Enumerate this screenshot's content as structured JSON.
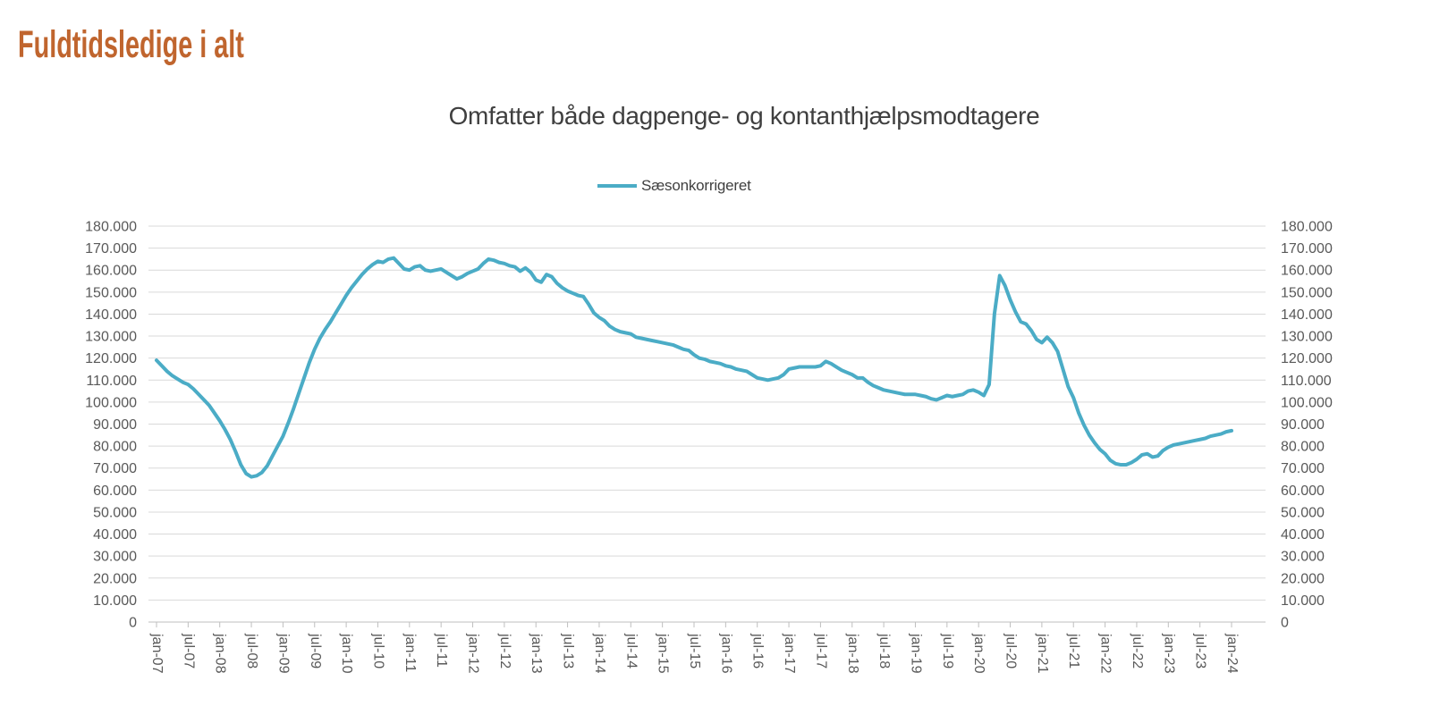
{
  "header": {
    "title": "Fuldtidsledige i alt",
    "title_color": "#C0652E"
  },
  "chart": {
    "subtitle": "Omfatter både dagpenge- og kontanthjælpsmodtagere",
    "legend": "Sæsonkorrigeret",
    "line_color": "#4BACC6",
    "gridline_color": "#D9D9D9",
    "axis_color": "#BFBFBF",
    "label_color": "#595959",
    "y_axis_labels": [
      "0",
      "10.000",
      "20.000",
      "30.000",
      "40.000",
      "50.000",
      "60.000",
      "70.000",
      "80.000",
      "90.000",
      "100.000",
      "110.000",
      "120.000",
      "130.000",
      "140.000",
      "150.000",
      "160.000",
      "170.000",
      "180.000"
    ]
  },
  "chart_data": {
    "type": "line",
    "title": "Omfatter både dagpenge- og kontanthjælpsmodtagere",
    "xlabel": "",
    "ylabel": "",
    "ylim": [
      0,
      180000
    ],
    "y_tick_step": 10000,
    "grid": "horizontal",
    "legend_position": "top-center",
    "axes": {
      "y_left": true,
      "y_right": true
    },
    "x_tick_labels": [
      "jan-07",
      "jul-07",
      "jan-08",
      "jul-08",
      "jan-09",
      "jul-09",
      "jan-10",
      "jul-10",
      "jan-11",
      "jul-11",
      "jan-12",
      "jul-12",
      "jan-13",
      "jul-13",
      "jan-14",
      "jul-14",
      "jan-15",
      "jul-15",
      "jan-16",
      "jul-16",
      "jan-17",
      "jul-17",
      "jan-18",
      "jul-18",
      "jan-19",
      "jul-19",
      "jan-20",
      "jul-20",
      "jan-21",
      "jul-21",
      "jan-22",
      "jul-22",
      "jan-23",
      "jul-23",
      "jan-24"
    ],
    "series": [
      {
        "name": "Sæsonkorrigeret",
        "unit": "fuldtidsledige personer",
        "frequency": "monthly",
        "x_start": "jan-07",
        "x_end": "jan-24",
        "values": [
          119000,
          116500,
          114000,
          112000,
          110500,
          109000,
          108000,
          106000,
          103500,
          101000,
          98500,
          95000,
          91500,
          87500,
          83000,
          77500,
          71500,
          67500,
          66000,
          66500,
          68000,
          71000,
          75500,
          80000,
          84500,
          90500,
          97000,
          104000,
          111000,
          118000,
          124000,
          129000,
          133000,
          136500,
          140500,
          144500,
          148500,
          152000,
          155000,
          158000,
          160500,
          162500,
          164000,
          163500,
          165000,
          165500,
          163000,
          160500,
          160000,
          161500,
          162000,
          160000,
          159500,
          160000,
          160500,
          159000,
          157500,
          156000,
          157000,
          158500,
          159500,
          160500,
          163000,
          165000,
          164500,
          163500,
          163000,
          162000,
          161500,
          159500,
          161000,
          159000,
          155500,
          154500,
          158000,
          157000,
          154000,
          152000,
          150500,
          149500,
          148500,
          148000,
          144500,
          140500,
          138500,
          137000,
          134500,
          133000,
          132000,
          131500,
          131000,
          129500,
          129000,
          128500,
          128000,
          127500,
          127000,
          126500,
          126000,
          125000,
          124000,
          123500,
          121500,
          120000,
          119500,
          118500,
          118000,
          117500,
          116500,
          116000,
          115000,
          114500,
          114000,
          112500,
          111000,
          110500,
          110000,
          110500,
          111000,
          112500,
          115000,
          115500,
          116000,
          116000,
          116000,
          116000,
          116500,
          118500,
          117500,
          116000,
          114500,
          113500,
          112500,
          111000,
          111000,
          109000,
          107500,
          106500,
          105500,
          105000,
          104500,
          104000,
          103500,
          103500,
          103500,
          103000,
          102500,
          101500,
          101000,
          102000,
          103000,
          102500,
          103000,
          103500,
          105000,
          105500,
          104500,
          103000,
          108000,
          140000,
          157500,
          153000,
          146500,
          141000,
          136500,
          135500,
          132500,
          128500,
          127000,
          129500,
          127000,
          123000,
          115000,
          107000,
          102000,
          95000,
          89500,
          85000,
          81500,
          78500,
          76500,
          73500,
          72000,
          71500,
          71500,
          72500,
          74000,
          76000,
          76500,
          75000,
          75500,
          78000,
          79500,
          80500,
          81000,
          81500,
          82000,
          82500,
          83000,
          83500,
          84500,
          85000,
          85500,
          86500,
          87000
        ]
      }
    ]
  }
}
